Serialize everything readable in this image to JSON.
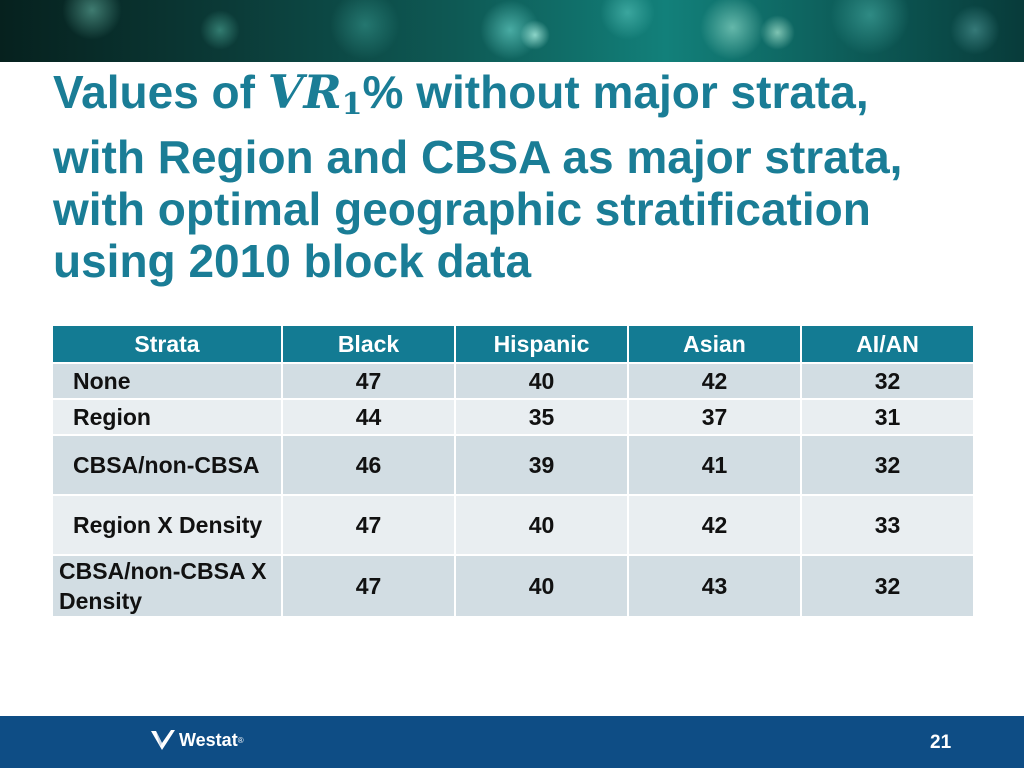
{
  "title": {
    "prefix": "Values of ",
    "symbol": "VR",
    "subscript": "1",
    "suffix": "% without major strata, with Region and CBSA as major strata, with optimal geographic stratification using 2010 block data"
  },
  "table": {
    "headers": [
      "Strata",
      "Black",
      "Hispanic",
      "Asian",
      "AI/AN"
    ],
    "rows": [
      {
        "strata": "None",
        "values": [
          "47",
          "40",
          "42",
          "32"
        ]
      },
      {
        "strata": "Region",
        "values": [
          "44",
          "35",
          "37",
          "31"
        ]
      },
      {
        "strata": "CBSA/non-CBSA",
        "values": [
          "46",
          "39",
          "41",
          "32"
        ]
      },
      {
        "strata": "Region X Density",
        "values": [
          "47",
          "40",
          "42",
          "33"
        ]
      },
      {
        "strata": "CBSA/non-CBSA X Density",
        "values": [
          "47",
          "40",
          "43",
          "32"
        ]
      }
    ]
  },
  "footer": {
    "logo_text": "Westat",
    "logo_mark": "®",
    "page_number": "21"
  },
  "colors": {
    "title": "#1a7d96",
    "header_bg": "#137b93",
    "row_odd": "#d2dde3",
    "row_even": "#e9eef1",
    "footer_bg": "#0e4d85"
  }
}
